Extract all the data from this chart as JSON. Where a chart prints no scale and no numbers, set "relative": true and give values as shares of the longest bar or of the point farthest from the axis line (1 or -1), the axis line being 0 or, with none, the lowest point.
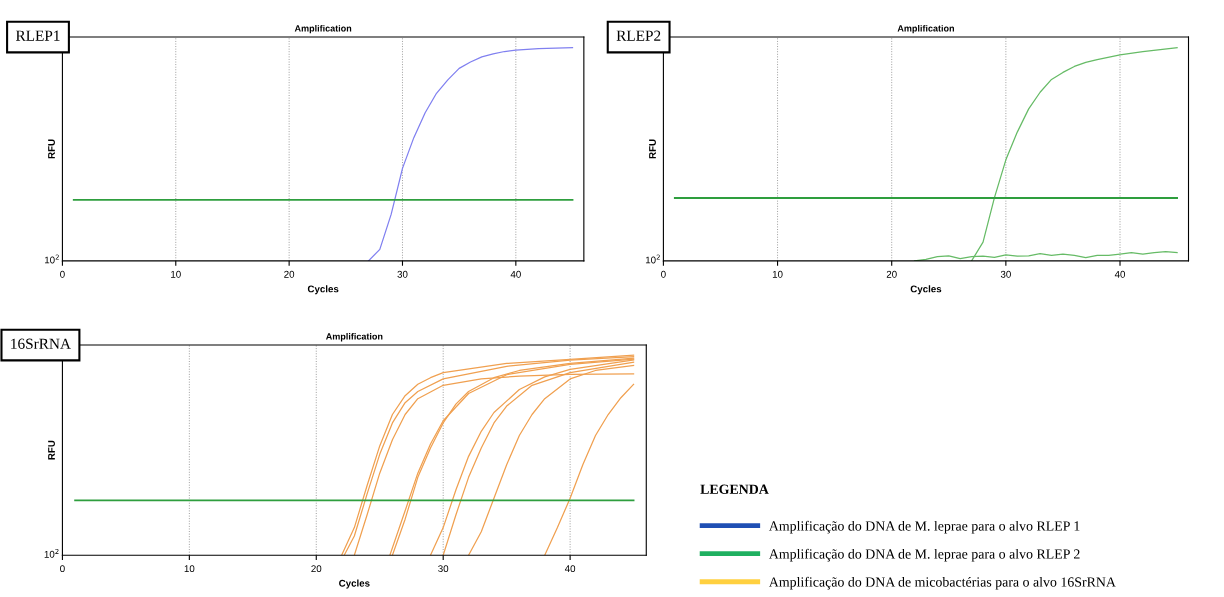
{
  "chart_data": [
    {
      "type": "line",
      "title": "Amplification",
      "subtitle": "RLEP1",
      "xlabel": "Cycles",
      "ylabel": "RFU",
      "relative": true,
      "xlim": [
        0,
        46
      ],
      "xticks": [
        0,
        10,
        20,
        30,
        40
      ],
      "grid": "x",
      "annotations": [
        "10$^{2}$"
      ],
      "series": [
        {
          "color": "#8080f0",
          "x": [
            27,
            28,
            29,
            30,
            31,
            32,
            33,
            34,
            35,
            36,
            37,
            38,
            39,
            40,
            42,
            45
          ],
          "values": [
            0,
            0.054,
            0.218,
            0.434,
            0.578,
            0.695,
            0.786,
            0.849,
            0.903,
            0.933,
            0.957,
            0.971,
            0.982,
            0.989,
            0.995,
            1
          ]
        }
      ],
      "ref_lines": [
        {
          "axis": "y",
          "value": 0.286,
          "color": "#2e9e3e"
        }
      ]
    },
    {
      "type": "line",
      "title": "Amplification",
      "subtitle": "RLEP2",
      "xlabel": "Cycles",
      "ylabel": "RFU",
      "relative": true,
      "xlim": [
        0,
        46
      ],
      "xticks": [
        0,
        10,
        20,
        30,
        40
      ],
      "grid": "x",
      "annotations": [
        "10$^{2}$"
      ],
      "series": [
        {
          "color": "#66bb66",
          "x": [
            27,
            28,
            29,
            30,
            31,
            32,
            33,
            34,
            35,
            36,
            37,
            38,
            40,
            42,
            45
          ],
          "values": [
            0,
            0.088,
            0.297,
            0.474,
            0.604,
            0.713,
            0.791,
            0.851,
            0.884,
            0.912,
            0.931,
            0.944,
            0.966,
            0.981,
            1
          ]
        },
        {
          "color": "#66bb66",
          "x": [
            22,
            23,
            24,
            25,
            26,
            27,
            28,
            29,
            30,
            31,
            32,
            33,
            34,
            35,
            36,
            37,
            38,
            39,
            40,
            41,
            42,
            43,
            44,
            45
          ],
          "values": [
            0,
            0.007,
            0.02,
            0.024,
            0.011,
            0.02,
            0.022,
            0.017,
            0.028,
            0.022,
            0.024,
            0.034,
            0.026,
            0.032,
            0.026,
            0.015,
            0.026,
            0.026,
            0.032,
            0.039,
            0.032,
            0.039,
            0.043,
            0.039
          ]
        }
      ],
      "ref_lines": [
        {
          "axis": "y",
          "value": 0.295,
          "color": "#2e9e3e"
        }
      ]
    },
    {
      "type": "line",
      "title": "Amplification",
      "subtitle": "16SrRNA",
      "xlabel": "Cycles",
      "ylabel": "RFU",
      "relative": true,
      "xlim": [
        0,
        46
      ],
      "xticks": [
        0,
        10,
        20,
        30,
        40
      ],
      "grid": "x",
      "annotations": [
        "10$^{2}$"
      ],
      "series": [
        {
          "color": "#f0a050",
          "x": [
            22,
            23,
            24,
            25,
            26,
            27,
            28,
            29,
            30,
            35,
            40,
            45
          ],
          "values": [
            0,
            0.138,
            0.347,
            0.546,
            0.703,
            0.797,
            0.854,
            0.887,
            0.912,
            0.958,
            0.979,
            1
          ]
        },
        {
          "color": "#f0a050",
          "x": [
            22.2,
            23,
            24,
            25,
            26,
            27,
            28,
            30,
            35,
            40,
            45
          ],
          "values": [
            0,
            0.096,
            0.305,
            0.504,
            0.661,
            0.762,
            0.818,
            0.881,
            0.944,
            0.975,
            0.992
          ]
        },
        {
          "color": "#f0a050",
          "x": [
            23,
            24,
            25,
            26,
            27,
            28,
            30,
            33,
            36,
            40,
            45
          ],
          "values": [
            0,
            0.201,
            0.41,
            0.577,
            0.703,
            0.782,
            0.849,
            0.881,
            0.895,
            0.904,
            0.906
          ]
        },
        {
          "color": "#f0a050",
          "x": [
            26,
            27,
            28,
            29,
            30,
            31,
            32,
            34,
            36,
            40,
            45
          ],
          "values": [
            0,
            0.18,
            0.389,
            0.536,
            0.661,
            0.755,
            0.818,
            0.887,
            0.923,
            0.958,
            0.985
          ]
        },
        {
          "color": "#f0a050",
          "x": [
            25.8,
            27,
            28,
            29,
            30,
            32,
            35,
            40,
            45
          ],
          "values": [
            0,
            0.222,
            0.41,
            0.556,
            0.672,
            0.808,
            0.902,
            0.954,
            0.979
          ]
        },
        {
          "color": "#f0a050",
          "x": [
            29,
            30,
            31,
            32,
            33,
            34,
            36,
            38,
            40,
            45
          ],
          "values": [
            0,
            0.138,
            0.326,
            0.494,
            0.619,
            0.713,
            0.828,
            0.891,
            0.929,
            0.975
          ]
        },
        {
          "color": "#f0a050",
          "x": [
            30,
            31,
            32,
            33,
            34,
            35,
            37,
            40,
            45
          ],
          "values": [
            0,
            0.201,
            0.389,
            0.536,
            0.661,
            0.745,
            0.849,
            0.912,
            0.964
          ]
        },
        {
          "color": "#f0a050",
          "x": [
            32,
            33,
            34,
            35,
            36,
            37,
            38,
            40,
            42,
            45
          ],
          "values": [
            0,
            0.117,
            0.285,
            0.452,
            0.598,
            0.703,
            0.782,
            0.881,
            0.923,
            0.948
          ]
        },
        {
          "color": "#f0a050",
          "x": [
            38,
            39,
            40,
            41,
            42,
            43,
            44,
            45
          ],
          "values": [
            0,
            0.138,
            0.285,
            0.452,
            0.598,
            0.703,
            0.787,
            0.854
          ]
        }
      ],
      "ref_lines": [
        {
          "axis": "y",
          "value": 0.274,
          "color": "#2e9e3e"
        }
      ]
    },
    {
      "type": "other",
      "title": "LEGENDA",
      "series": [
        {
          "name": "Amplificação do DNA de M. leprae para o alvo RLEP 1",
          "color": "#1f4fb4"
        },
        {
          "name": "Amplificação do DNA de M. leprae para o alvo RLEP 2",
          "color": "#1fb060"
        },
        {
          "name": "Amplificação do DNA de micobactérias para o alvo 16SrRNA",
          "color": "#ffd040"
        }
      ]
    }
  ]
}
